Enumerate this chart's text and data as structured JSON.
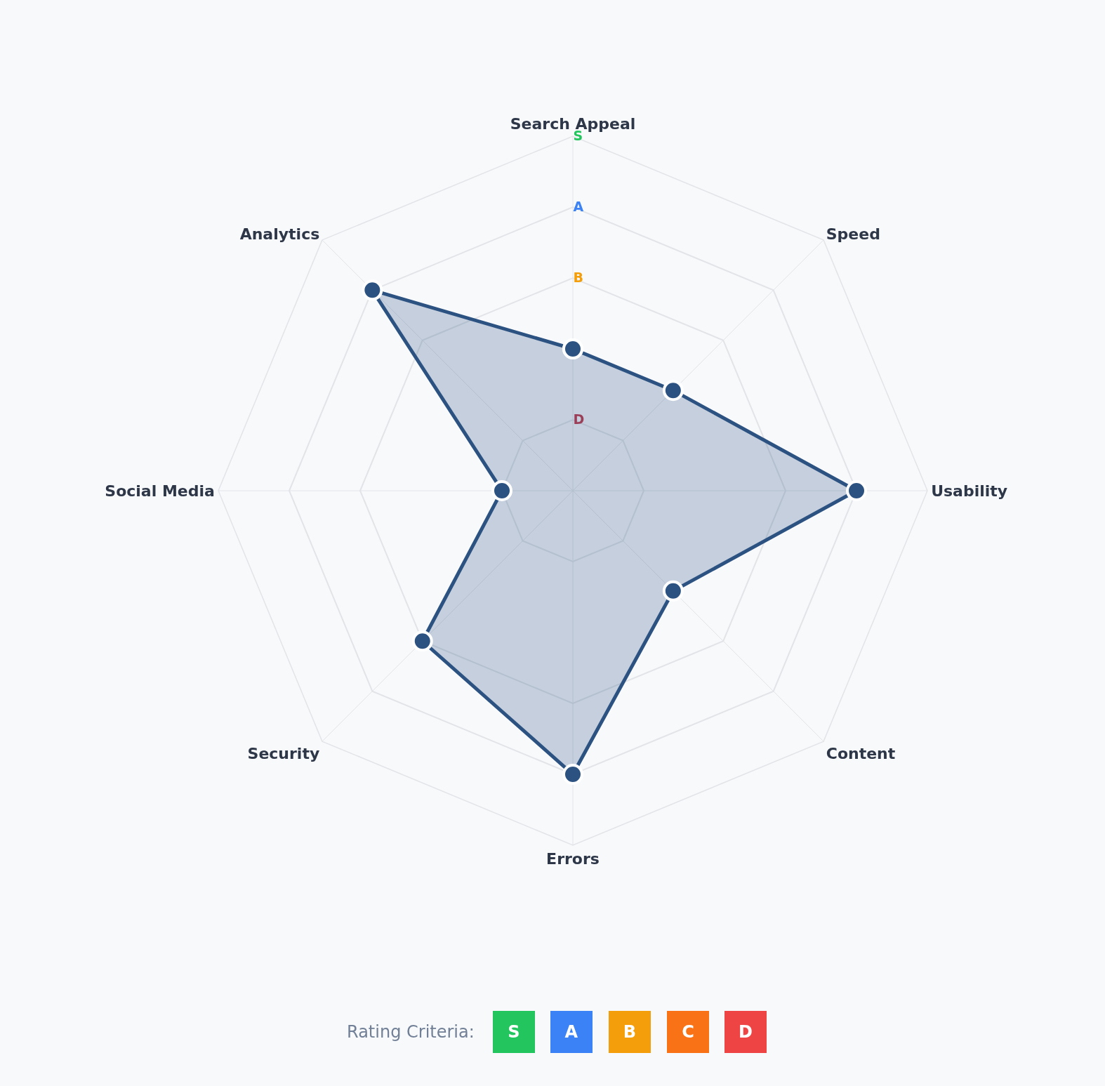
{
  "chart_data": {
    "type": "radar",
    "categories": [
      "Search Appeal",
      "Speed",
      "Usability",
      "Content",
      "Errors",
      "Security",
      "Social Media",
      "Analytics"
    ],
    "series": [
      {
        "color": "#2c5282",
        "values": [
          2,
          2,
          4,
          2,
          4,
          3,
          1,
          4
        ]
      }
    ],
    "ylim": [
      0,
      5
    ],
    "yticks": [
      {
        "value": 1,
        "label": "D"
      },
      {
        "value": 3,
        "label": "B"
      },
      {
        "value": 4,
        "label": "A"
      },
      {
        "value": 5,
        "label": "S"
      }
    ],
    "grid": true,
    "marker": "circle",
    "line_style": "solid",
    "annotations": [
      "Rating Criteria:",
      "S",
      "A",
      "B",
      "C",
      "D"
    ]
  }
}
